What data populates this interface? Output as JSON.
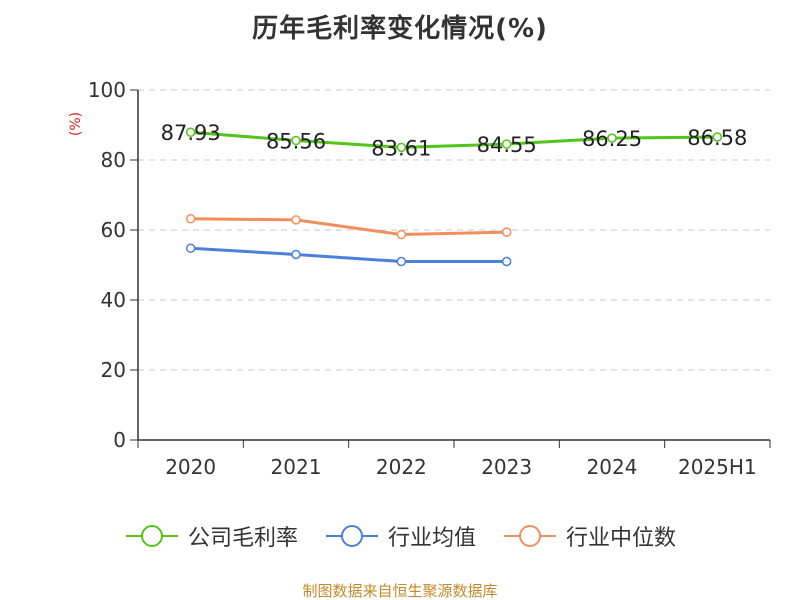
{
  "chart_data": {
    "type": "line",
    "title": "历年毛利率变化情况(%)",
    "ylabel": "(%)",
    "xlabel": "",
    "categories": [
      "2020",
      "2021",
      "2022",
      "2023",
      "2024",
      "2025H1"
    ],
    "ylim": [
      0,
      100
    ],
    "yticks": [
      0,
      20,
      40,
      60,
      80,
      100
    ],
    "grid": "horizontal dashed",
    "legend_position": "bottom",
    "series": [
      {
        "name": "公司毛利率",
        "color": "#52c41a",
        "values": [
          87.93,
          85.56,
          83.61,
          84.55,
          86.25,
          86.58
        ],
        "labels": [
          "87.93",
          "85.56",
          "83.61",
          "84.55",
          "86.25",
          "86.58"
        ]
      },
      {
        "name": "行业均值",
        "color": "#4a7fdc",
        "values": [
          54.8,
          53.0,
          51.0,
          51.0,
          null,
          null
        ]
      },
      {
        "name": "行业中位数",
        "color": "#f28e5c",
        "values": [
          63.2,
          62.9,
          58.7,
          59.4,
          null,
          null
        ]
      }
    ]
  },
  "source": "制图数据来自恒生聚源数据库",
  "colors": {
    "axis": "#333333",
    "grid": "#c8c8c8",
    "ylabel": "#e02020",
    "source": "#c68a2a"
  }
}
